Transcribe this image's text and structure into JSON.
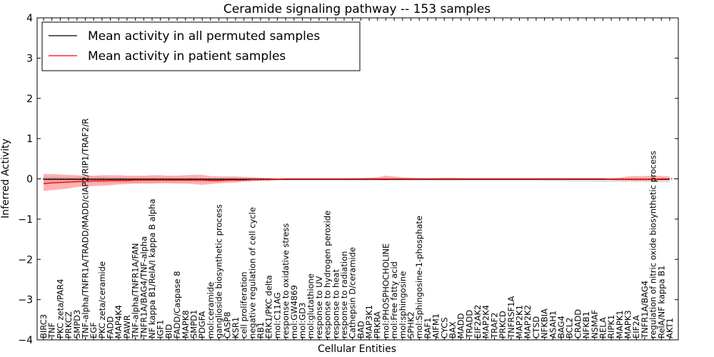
{
  "chart_data": {
    "type": "line",
    "title": "Ceramide signaling pathway -- 153 samples",
    "xlabel": "Cellular Entities",
    "ylabel": "Inferred Activity",
    "ylim": [
      -4,
      4
    ],
    "yticks": [
      -4,
      -3,
      -2,
      -1,
      0,
      1,
      2,
      3,
      4
    ],
    "ytick_labels": [
      "−4",
      "−3",
      "−2",
      "−1",
      "0",
      "1",
      "2",
      "3",
      "4"
    ],
    "grid": false,
    "legend_position": "top-left",
    "categories": [
      "BIRC3",
      "TNF",
      "PKC zeta/PAR4",
      "PRKCZ",
      "SMPD3",
      "TNF-alpha/TNFR1A/TRADD/MADD/cIAP2/RIP1/TRAF2/R",
      "EGF",
      "PKC zeta/ceramide",
      "FADD",
      "MAP4K4",
      "PAWR",
      "TNF-alpha/TNFR1A/FAN",
      "TNFR1A/BAG4/TNF-alpha",
      "NF kappa B1/RelA/I kappa B alpha",
      "IGF1",
      "BID",
      "FADD/Caspase 8",
      "MAPK8",
      "SMPD1",
      "PDGFA",
      "mol:ceramide",
      "ganglioside biosynthetic process",
      "CASP8",
      "KSR1",
      "cell proliferation",
      "negative regulation of cell cycle",
      "RB1",
      "ERK1/PKC delta",
      "mol:C11AG",
      "response to oxidative stress",
      "mol:GW4869",
      "mol:GD3",
      "mol:glutathione",
      "response to UV",
      "response to hydrogen peroxide",
      "response to heat",
      "response to radiation",
      "Cathepsin D/ceramide",
      "BAD",
      "MAP3K1",
      "PRKRA",
      "mol:PHOSPHOCHOLINE",
      "mol:Free fatty acid",
      "mol:sphingosine",
      "SPHK2",
      "mol:Sphingosine-1-phosphate",
      "RAF1",
      "AIFM1",
      "CYCS",
      "BAX",
      "MADD",
      "TRADD",
      "EIF2AK2",
      "MAP2K4",
      "TRAF2",
      "PRKCD",
      "TNFRSF1A",
      "MAP2K1",
      "MAP2K2",
      "CTSD",
      "NFKBIA",
      "ASAH1",
      "BAG4",
      "BCL2",
      "CRADD",
      "NFKB1",
      "NSMAF",
      "RELA",
      "RIPK1",
      "MAPK1",
      "MAPK3",
      "EIF2A",
      "TNFR1A/BAG4",
      "regulation of nitric oxide biosynthetic process",
      "RelA/NF kappa B1",
      "AKT1"
    ],
    "series": [
      {
        "name": "Mean activity in all permuted samples",
        "color": "#000000",
        "values": [
          -0.01,
          -0.01,
          -0.01,
          -0.01,
          -0.01,
          -0.01,
          -0.01,
          -0.01,
          -0.01,
          -0.01,
          -0.01,
          -0.01,
          -0.01,
          -0.01,
          -0.01,
          -0.01,
          -0.01,
          -0.01,
          -0.01,
          -0.01,
          -0.01,
          -0.01,
          -0.01,
          -0.01,
          -0.01,
          -0.01,
          -0.01,
          -0.01,
          -0.01,
          -0.01,
          -0.01,
          -0.01,
          -0.01,
          -0.01,
          -0.01,
          -0.01,
          -0.01,
          -0.01,
          -0.01,
          -0.01,
          -0.01,
          -0.01,
          -0.01,
          -0.01,
          -0.01,
          -0.01,
          -0.01,
          -0.01,
          -0.01,
          -0.01,
          -0.01,
          -0.01,
          -0.01,
          -0.01,
          -0.01,
          -0.01,
          -0.01,
          -0.01,
          -0.01,
          -0.01,
          -0.01,
          -0.01,
          -0.01,
          -0.01,
          -0.01,
          -0.01,
          -0.01,
          -0.01,
          -0.01,
          -0.01,
          -0.01,
          -0.01,
          -0.01,
          -0.01,
          -0.01,
          -0.01
        ],
        "band_lower": [
          -0.12,
          -0.12,
          -0.11,
          -0.11,
          -0.1,
          -0.11,
          -0.1,
          -0.1,
          -0.1,
          -0.09,
          -0.09,
          -0.1,
          -0.09,
          -0.09,
          -0.09,
          -0.09,
          -0.08,
          -0.08,
          -0.08,
          -0.08,
          -0.07,
          -0.07,
          -0.07,
          -0.06,
          -0.06,
          -0.05,
          -0.05,
          -0.05,
          -0.05,
          -0.05,
          -0.05,
          -0.05,
          -0.05,
          -0.05,
          -0.05,
          -0.05,
          -0.05,
          -0.05,
          -0.05,
          -0.05,
          -0.05,
          -0.05,
          -0.05,
          -0.05,
          -0.05,
          -0.05,
          -0.05,
          -0.05,
          -0.05,
          -0.05,
          -0.05,
          -0.05,
          -0.05,
          -0.05,
          -0.05,
          -0.05,
          -0.05,
          -0.05,
          -0.05,
          -0.05,
          -0.06,
          -0.06,
          -0.06,
          -0.07,
          -0.07,
          -0.07,
          -0.08,
          -0.08,
          -0.08,
          -0.08,
          -0.08,
          -0.08,
          -0.08,
          -0.09,
          -0.09,
          -0.09
        ],
        "band_upper": [
          0.05,
          0.05,
          0.05,
          0.05,
          0.05,
          0.05,
          0.05,
          0.05,
          0.04,
          0.04,
          0.04,
          0.04,
          0.04,
          0.04,
          0.04,
          0.04,
          0.03,
          0.03,
          0.03,
          0.03,
          0.02,
          0.02,
          0.02,
          0.02,
          0.01,
          0.01,
          0.01,
          0.01,
          0.01,
          0.01,
          0.01,
          0.01,
          0.01,
          0.01,
          0.01,
          0.01,
          0.01,
          0.01,
          0.01,
          0.01,
          0.01,
          0.01,
          0.01,
          0.01,
          0.01,
          0.01,
          0.01,
          0.01,
          0.01,
          0.01,
          0.01,
          0.01,
          0.01,
          0.01,
          0.01,
          0.01,
          0.01,
          0.01,
          0.01,
          0.01,
          0.01,
          0.01,
          0.01,
          0.01,
          0.01,
          0.01,
          0.01,
          0.01,
          0.01,
          0.01,
          0.01,
          0.01,
          0.01,
          0.01,
          0.01,
          0.01
        ]
      },
      {
        "name": "Mean activity in patient samples",
        "color": "#ff0000",
        "values": [
          -0.12,
          -0.1,
          -0.09,
          -0.08,
          -0.07,
          -0.06,
          -0.05,
          -0.05,
          -0.04,
          -0.04,
          -0.04,
          -0.03,
          -0.03,
          -0.03,
          -0.03,
          -0.03,
          -0.03,
          -0.03,
          -0.03,
          -0.03,
          -0.04,
          -0.04,
          -0.03,
          -0.03,
          -0.03,
          -0.02,
          -0.02,
          -0.02,
          -0.01,
          0.0,
          0.0,
          0.0,
          0.0,
          0.0,
          0.0,
          0.0,
          0.0,
          0.0,
          0.0,
          0.0,
          0.0,
          0.0,
          0.0,
          0.0,
          0.0,
          0.0,
          0.0,
          0.0,
          0.0,
          0.0,
          0.0,
          0.0,
          0.0,
          0.0,
          0.0,
          0.0,
          0.0,
          0.0,
          0.0,
          0.0,
          0.0,
          0.0,
          0.0,
          0.0,
          0.0,
          0.0,
          0.0,
          0.0,
          -0.01,
          -0.01,
          -0.01,
          -0.01,
          -0.01,
          -0.01,
          0.0,
          0.0
        ],
        "band_lower": [
          -0.3,
          -0.28,
          -0.26,
          -0.24,
          -0.2,
          -0.19,
          -0.18,
          -0.17,
          -0.16,
          -0.14,
          -0.13,
          -0.12,
          -0.12,
          -0.12,
          -0.11,
          -0.11,
          -0.12,
          -0.12,
          -0.13,
          -0.15,
          -0.13,
          -0.11,
          -0.1,
          -0.09,
          -0.07,
          -0.06,
          -0.05,
          -0.04,
          -0.03,
          -0.02,
          -0.02,
          -0.02,
          -0.02,
          -0.02,
          -0.02,
          -0.02,
          -0.02,
          -0.02,
          -0.02,
          -0.02,
          -0.02,
          -0.03,
          -0.02,
          -0.02,
          -0.02,
          -0.02,
          -0.02,
          -0.02,
          -0.02,
          -0.02,
          -0.02,
          -0.02,
          -0.02,
          -0.02,
          -0.02,
          -0.02,
          -0.02,
          -0.02,
          -0.02,
          -0.02,
          -0.02,
          -0.02,
          -0.02,
          -0.02,
          -0.02,
          -0.02,
          -0.02,
          -0.02,
          -0.03,
          -0.04,
          -0.04,
          -0.05,
          -0.05,
          -0.05,
          -0.04,
          -0.03
        ],
        "band_upper": [
          0.12,
          0.12,
          0.11,
          0.1,
          0.09,
          0.08,
          0.08,
          0.09,
          0.09,
          0.09,
          0.08,
          0.08,
          0.08,
          0.09,
          0.09,
          0.08,
          0.08,
          0.09,
          0.1,
          0.1,
          0.07,
          0.06,
          0.06,
          0.06,
          0.05,
          0.04,
          0.03,
          0.02,
          0.01,
          0.01,
          0.01,
          0.01,
          0.01,
          0.01,
          0.01,
          0.01,
          0.01,
          0.02,
          0.02,
          0.03,
          0.04,
          0.08,
          0.06,
          0.04,
          0.03,
          0.02,
          0.02,
          0.02,
          0.03,
          0.03,
          0.02,
          0.02,
          0.02,
          0.02,
          0.02,
          0.02,
          0.02,
          0.02,
          0.02,
          0.02,
          0.02,
          0.02,
          0.02,
          0.02,
          0.02,
          0.02,
          0.02,
          0.02,
          0.02,
          0.03,
          0.06,
          0.07,
          0.07,
          0.08,
          0.07,
          0.06
        ]
      }
    ]
  }
}
